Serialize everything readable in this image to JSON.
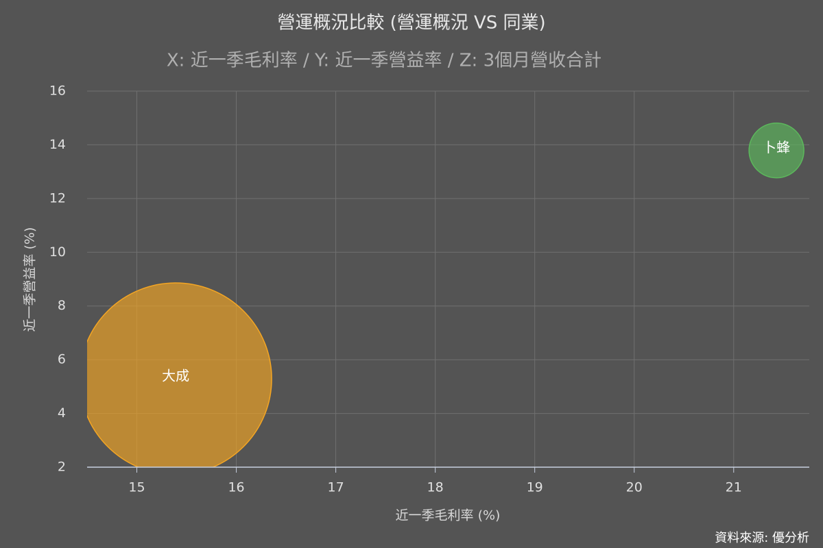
{
  "chart_data": {
    "type": "bubble",
    "title": "營運概況比較 (營運概況 VS 同業)",
    "subtitle": "X: 近一季毛利率 / Y: 近一季營益率 / Z: 3個月營收合計",
    "x_label": "近一季毛利率 (%)",
    "y_label": "近一季營益率 (%)",
    "source": "資料來源: 優分析",
    "xlim": [
      14.5,
      21.76
    ],
    "xticks": [
      15,
      16,
      17,
      18,
      19,
      20,
      21
    ],
    "ylim": [
      2,
      16
    ],
    "yticks": [
      2,
      4,
      6,
      8,
      10,
      12,
      14,
      16
    ],
    "grid": true,
    "series": [
      {
        "name": "大成",
        "color": "#f5a623",
        "x": [
          15.39
        ],
        "values": [
          5.29
        ],
        "sizes": [
          49
        ]
      },
      {
        "name": "卜蜂",
        "color": "#5cb85c",
        "x": [
          21.43
        ],
        "values": [
          13.79
        ],
        "sizes": [
          4
        ]
      }
    ]
  }
}
